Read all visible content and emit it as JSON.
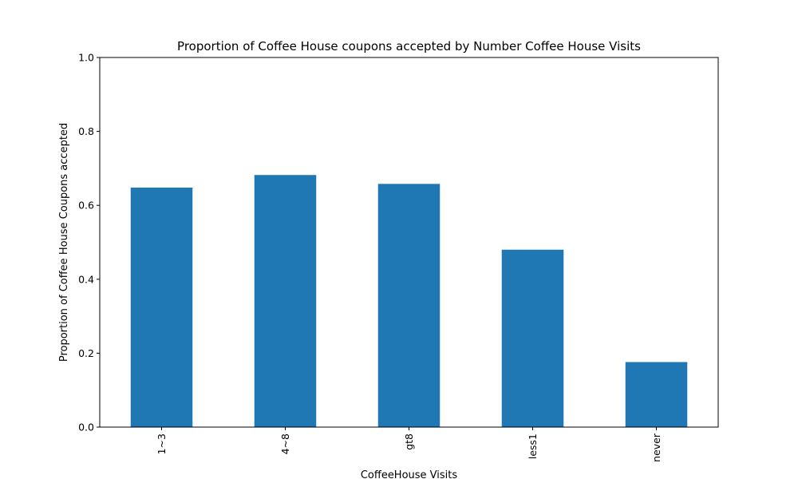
{
  "chart_data": {
    "type": "bar",
    "title": "Proportion of Coffee House coupons accepted by Number Coffee House Visits",
    "xlabel": "CoffeeHouse Visits",
    "ylabel": "Proportion of Coffee House Coupons accepted",
    "categories": [
      "1~3",
      "4~8",
      "gt8",
      "less1",
      "never"
    ],
    "values": [
      0.648,
      0.682,
      0.658,
      0.48,
      0.176
    ],
    "ylim": [
      0,
      1.0
    ],
    "yticks": [
      "0.0",
      "0.2",
      "0.4",
      "0.6",
      "0.8",
      "1.0"
    ],
    "bar_color": "#1f77b4",
    "grid": false,
    "legend": "none"
  }
}
